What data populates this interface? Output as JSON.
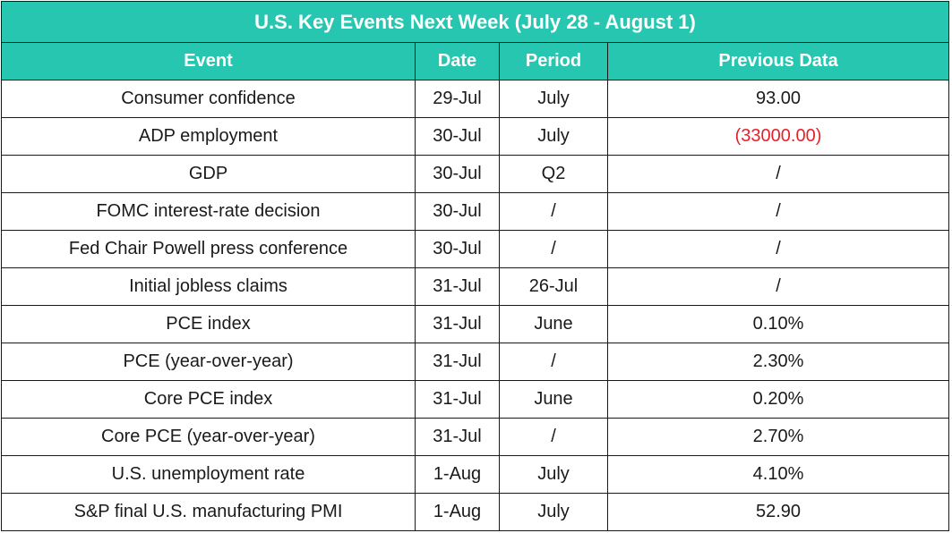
{
  "table": {
    "title": "U.S. Key Events Next Week (July 28 - August 1)",
    "headers": {
      "event": "Event",
      "date": "Date",
      "period": "Period",
      "previous": "Previous Data"
    },
    "rows": [
      {
        "event": "Consumer confidence",
        "date": "29-Jul",
        "period": "July",
        "previous": "93.00"
      },
      {
        "event": "ADP employment",
        "date": "30-Jul",
        "period": "July",
        "previous": "(33000.00)"
      },
      {
        "event": "GDP",
        "date": "30-Jul",
        "period": "Q2",
        "previous": "/"
      },
      {
        "event": "FOMC interest-rate decision",
        "date": "30-Jul",
        "period": "/",
        "previous": "/"
      },
      {
        "event": "Fed Chair Powell press conference",
        "date": "30-Jul",
        "period": "/",
        "previous": "/"
      },
      {
        "event": "Initial jobless claims",
        "date": "31-Jul",
        "period": "26-Jul",
        "previous": "/"
      },
      {
        "event": "PCE index",
        "date": "31-Jul",
        "period": "June",
        "previous": "0.10%"
      },
      {
        "event": "PCE (year-over-year)",
        "date": "31-Jul",
        "period": "/",
        "previous": "2.30%"
      },
      {
        "event": "Core PCE index",
        "date": "31-Jul",
        "period": "June",
        "previous": "0.20%"
      },
      {
        "event": "Core PCE (year-over-year)",
        "date": "31-Jul",
        "period": "/",
        "previous": "2.70%"
      },
      {
        "event": "U.S. unemployment rate",
        "date": "1-Aug",
        "period": "July",
        "previous": "4.10%"
      },
      {
        "event": "S&P final U.S. manufacturing PMI",
        "date": "1-Aug",
        "period": "July",
        "previous": "52.90"
      }
    ]
  },
  "colors": {
    "header_bg": "#26c6b0",
    "header_text": "#ffffff",
    "negative_value": "#e8202a",
    "border": "#1a1a1a"
  }
}
